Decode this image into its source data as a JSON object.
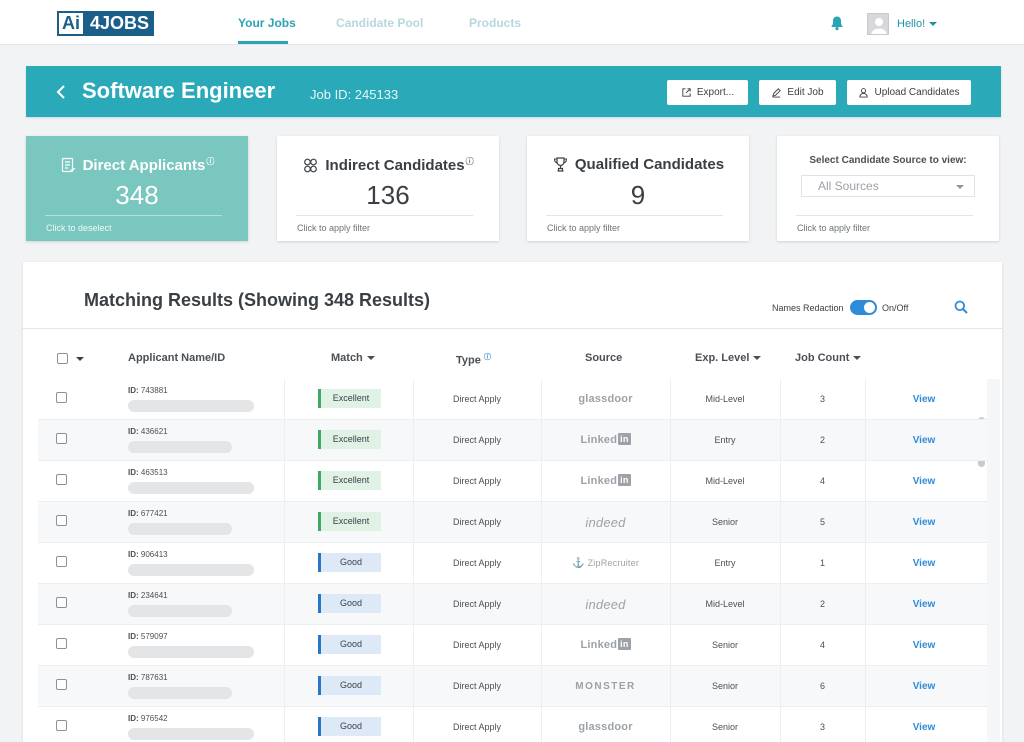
{
  "brand": {
    "logo_a": "Ai",
    "logo_b": "4JOBS"
  },
  "nav": {
    "items": [
      {
        "label": "Your Jobs",
        "active": true
      },
      {
        "label": "Candidate Pool",
        "active": false
      },
      {
        "label": "Products",
        "active": false
      }
    ],
    "greeting": "Hello!"
  },
  "job": {
    "title": "Software Engineer",
    "id_label": "Job ID: 245133",
    "buttons": {
      "export": "Export...",
      "edit": "Edit Job",
      "upload": "Upload Candidates"
    }
  },
  "cards": {
    "direct": {
      "label": "Direct Applicants",
      "count": "348",
      "footer": "Click to deselect",
      "selected": true
    },
    "indirect": {
      "label": "Indirect Candidates",
      "count": "136",
      "footer": "Click to apply filter"
    },
    "qualified": {
      "label": "Qualified Candidates",
      "count": "9",
      "footer": "Click to apply filter"
    },
    "source": {
      "label": "Select Candidate Source to view:",
      "value": "All Sources",
      "footer": "Click to apply filter"
    }
  },
  "results": {
    "title": "Matching Results (Showing 348 Results)",
    "redaction_label": "Names Redaction",
    "redaction_on": true,
    "toggle_label": "On/Off",
    "columns": {
      "name": "Applicant Name/ID",
      "match": "Match",
      "type": "Type",
      "source": "Source",
      "exp": "Exp. Level",
      "jobs": "Job Count"
    },
    "rows": [
      {
        "id_prefix": "ID:",
        "id": "743881",
        "match": "Excellent",
        "type": "Direct Apply",
        "source": "glassdoor",
        "exp": "Mid-Level",
        "jobs": "3",
        "action": "View"
      },
      {
        "id_prefix": "ID:",
        "id": "436621",
        "match": "Excellent",
        "type": "Direct Apply",
        "source": "LinkedIn",
        "exp": "Entry",
        "jobs": "2",
        "action": "View"
      },
      {
        "id_prefix": "ID:",
        "id": "463513",
        "match": "Excellent",
        "type": "Direct Apply",
        "source": "LinkedIn",
        "exp": "Mid-Level",
        "jobs": "4",
        "action": "View"
      },
      {
        "id_prefix": "ID:",
        "id": "677421",
        "match": "Excellent",
        "type": "Direct Apply",
        "source": "indeed",
        "exp": "Senior",
        "jobs": "5",
        "action": "View"
      },
      {
        "id_prefix": "ID:",
        "id": "906413",
        "match": "Good",
        "type": "Direct Apply",
        "source": "ZipRecruiter",
        "exp": "Entry",
        "jobs": "1",
        "action": "View"
      },
      {
        "id_prefix": "ID:",
        "id": "234641",
        "match": "Good",
        "type": "Direct Apply",
        "source": "indeed",
        "exp": "Mid-Level",
        "jobs": "2",
        "action": "View"
      },
      {
        "id_prefix": "ID:",
        "id": "579097",
        "match": "Good",
        "type": "Direct Apply",
        "source": "LinkedIn",
        "exp": "Senior",
        "jobs": "4",
        "action": "View"
      },
      {
        "id_prefix": "ID:",
        "id": "787631",
        "match": "Good",
        "type": "Direct Apply",
        "source": "MONSTER",
        "exp": "Senior",
        "jobs": "6",
        "action": "View"
      },
      {
        "id_prefix": "ID:",
        "id": "976542",
        "match": "Good",
        "type": "Direct Apply",
        "source": "glassdoor",
        "exp": "Senior",
        "jobs": "3",
        "action": "View"
      }
    ]
  },
  "colors": {
    "accent": "#2aaab9",
    "selected_card": "#79c7bf",
    "link": "#2f8bd8",
    "excellent": "#3fa864",
    "good": "#2a76c4"
  }
}
